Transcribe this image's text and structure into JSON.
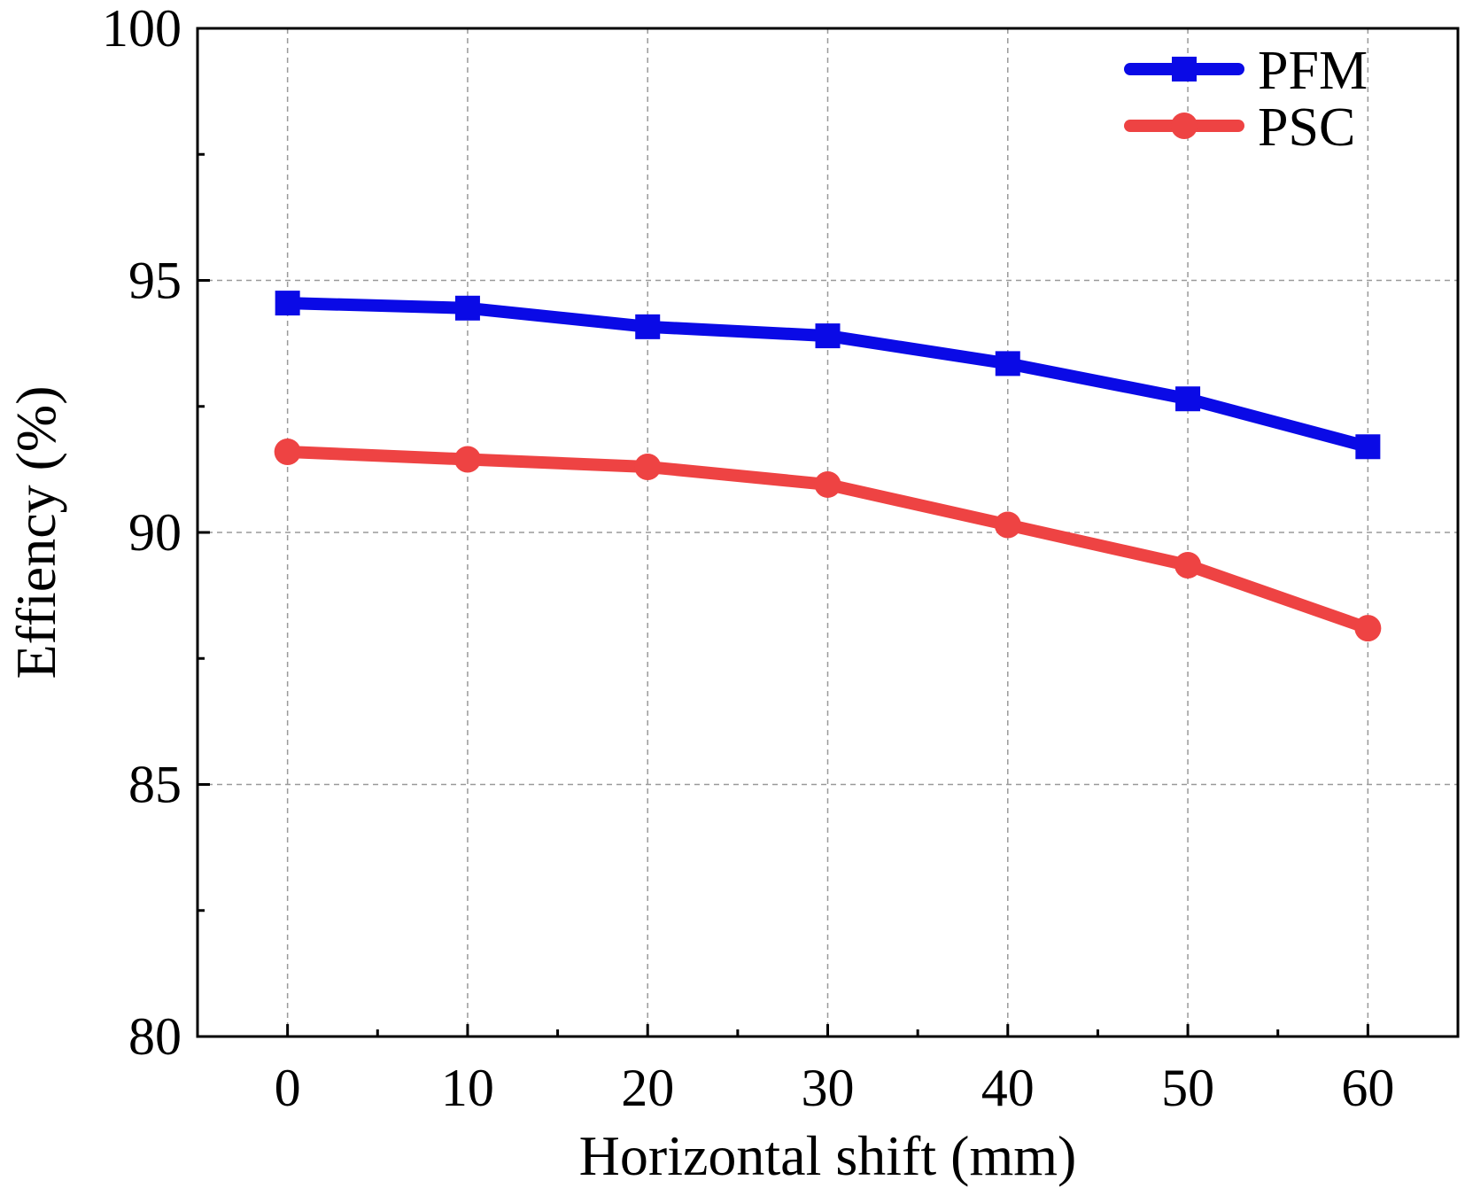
{
  "chart_data": {
    "type": "line",
    "title": "",
    "xlabel": "Horizontal shift (mm)",
    "ylabel": "Effiency (%)",
    "x": [
      0,
      10,
      20,
      30,
      40,
      50,
      60
    ],
    "xlim": [
      -5,
      65
    ],
    "ylim": [
      80,
      100
    ],
    "xticks": [
      0,
      10,
      20,
      30,
      40,
      50,
      60
    ],
    "xtick_labels": [
      "0",
      "10",
      "20",
      "30",
      "40",
      "50",
      "60"
    ],
    "xminor": [
      5,
      15,
      25,
      35,
      45,
      55
    ],
    "yticks": [
      80,
      85,
      90,
      95,
      100
    ],
    "ytick_labels": [
      "80",
      "85",
      "90",
      "95",
      "100"
    ],
    "yminor": [
      82.5,
      87.5,
      92.5,
      97.5
    ],
    "grid": true,
    "legend_position": "top-right",
    "series": [
      {
        "name": "PFM",
        "color": "#0a0ae6",
        "marker": "square",
        "values": [
          94.55,
          94.45,
          94.08,
          93.9,
          93.35,
          92.65,
          91.7
        ]
      },
      {
        "name": "PSC",
        "color": "#ee4343",
        "marker": "circle",
        "values": [
          91.6,
          91.45,
          91.3,
          90.95,
          90.15,
          89.35,
          88.1
        ]
      }
    ]
  }
}
